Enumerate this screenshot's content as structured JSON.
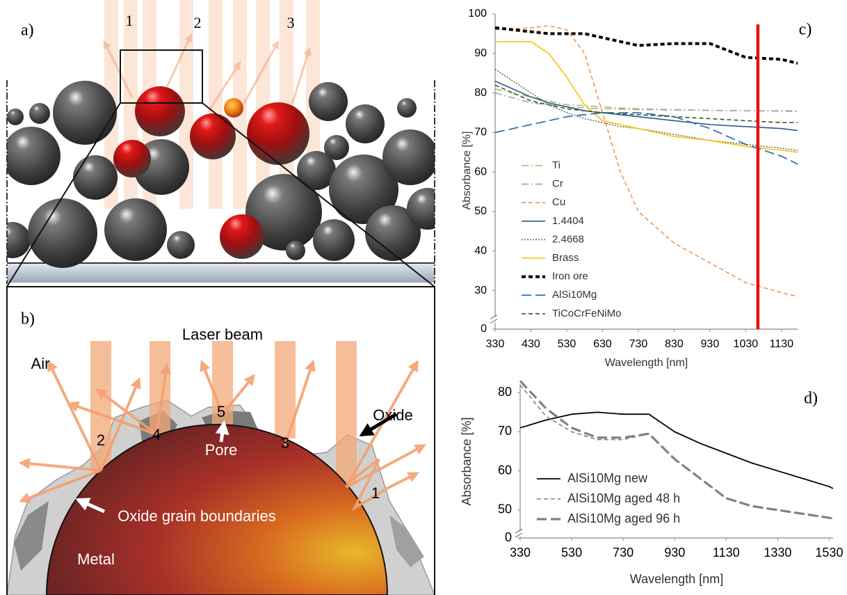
{
  "panels": {
    "a": {
      "label": "a)",
      "beams": [
        "1",
        "2",
        "3"
      ]
    },
    "b": {
      "label": "b)",
      "title": "Laser beam",
      "labels": [
        "Air",
        "2",
        "4",
        "5",
        "3",
        "Oxide",
        "Pore",
        "1",
        "Oxide grain boundaries",
        "Metal"
      ]
    }
  },
  "chart_data": [
    {
      "type": "line",
      "panel_label": "c)",
      "x_label": "Wavelength [nm]",
      "y_label": "Absorbance [%]",
      "x": [
        330,
        430,
        480,
        530,
        580,
        630,
        680,
        730,
        830,
        930,
        1030,
        1130,
        1175
      ],
      "xlim": [
        330,
        1175
      ],
      "xticks": [
        330,
        430,
        530,
        630,
        730,
        830,
        930,
        1030,
        1130
      ],
      "ylim": [
        0,
        100
      ],
      "yticks": [
        0,
        30,
        40,
        50,
        60,
        70,
        80,
        90,
        100
      ],
      "y_break": 25,
      "legend": "lower left",
      "vline": {
        "x": 1064,
        "color": "#e81010"
      },
      "series": [
        {
          "name": "Ti",
          "color": "#9bc45a",
          "linestyle": "dashdot",
          "linewidth": 1.6,
          "values": [
            81,
            79,
            78,
            77,
            76.8,
            76.5,
            76.2,
            76,
            75.8,
            75.6,
            75.5,
            75.4,
            75.3
          ]
        },
        {
          "name": "Cr",
          "color": "#a5a5a5",
          "linestyle": "dashdot",
          "linewidth": 1.6,
          "values": [
            80,
            77.5,
            77,
            76.5,
            76.2,
            76,
            75.9,
            75.8,
            75.7,
            75.6,
            75.5,
            75.5,
            75.5
          ]
        },
        {
          "name": "Cu",
          "color": "#ed7d31",
          "linestyle": "dash",
          "linewidth": 1.3,
          "values": [
            96,
            96.5,
            97,
            96,
            90,
            75,
            60,
            50,
            42,
            37,
            32,
            29.5,
            28.5
          ]
        },
        {
          "name": "1.4404",
          "color": "#2f5597",
          "linestyle": "solid",
          "linewidth": 1.6,
          "values": [
            83,
            79,
            77.5,
            76.5,
            75.5,
            75,
            74.5,
            74,
            73,
            72,
            71.5,
            71,
            70.5
          ]
        },
        {
          "name": "2.4668",
          "color": "#555555",
          "linestyle": "dot",
          "linewidth": 1.4,
          "values": [
            86,
            80,
            77,
            75,
            73.5,
            72.5,
            71.5,
            71,
            69.5,
            68,
            67,
            66,
            65.5
          ]
        },
        {
          "name": "Brass",
          "color": "#ffc000",
          "linestyle": "solid",
          "linewidth": 1.6,
          "values": [
            93,
            93,
            90,
            84,
            77,
            73,
            72,
            71,
            69,
            68,
            66.5,
            65.5,
            65
          ]
        },
        {
          "name": "Iron ore",
          "color": "#000000",
          "linestyle": "dash",
          "linewidth": 4,
          "values": [
            96.5,
            95.5,
            95,
            95,
            95,
            94,
            93,
            92,
            92.5,
            92.5,
            89,
            88.5,
            87.5
          ]
        },
        {
          "name": "AlSi10Mg",
          "color": "#2e75b6",
          "linestyle": "longdash",
          "linewidth": 1.8,
          "values": [
            70,
            72,
            73,
            74,
            74.5,
            75,
            75,
            75,
            74,
            71,
            67,
            64,
            62
          ]
        },
        {
          "name": "TiCoCrFeNiMo",
          "color": "#375623",
          "linestyle": "dash",
          "linewidth": 1.6,
          "values": [
            82,
            78,
            77,
            76,
            75.5,
            75,
            74.7,
            74.5,
            74,
            73.5,
            73,
            72.5,
            72.5
          ]
        }
      ]
    },
    {
      "type": "line",
      "panel_label": "d)",
      "x_label": "Wavelength [nm]",
      "y_label": "Absorbance [%]",
      "x": [
        330,
        430,
        530,
        630,
        730,
        830,
        930,
        1030,
        1130,
        1230,
        1330,
        1430,
        1530,
        1545
      ],
      "xlim": [
        330,
        1545
      ],
      "xticks": [
        330,
        530,
        730,
        930,
        1130,
        1330,
        1530
      ],
      "ylim": [
        0,
        82
      ],
      "yticks": [
        0,
        50,
        60,
        70,
        80
      ],
      "y_break": 45,
      "legend": "lower left",
      "series": [
        {
          "name": "AlSi10Mg new",
          "color": "#000000",
          "linestyle": "solid",
          "linewidth": 1.8,
          "values": [
            71,
            73,
            74.5,
            75,
            74.5,
            74.5,
            70,
            67,
            64.5,
            62,
            60,
            58,
            56,
            55.5
          ]
        },
        {
          "name": "AlSi10Mg aged 48 h",
          "color": "#808080",
          "linestyle": "dash",
          "linewidth": 1.6,
          "values": [
            82,
            74,
            70,
            68,
            68,
            69.5,
            63,
            58,
            53,
            51,
            50,
            49,
            48,
            47.8
          ]
        },
        {
          "name": "AlSi10Mg aged 96 h",
          "color": "#808080",
          "linestyle": "longdash",
          "linewidth": 3.2,
          "values": [
            83,
            76,
            71,
            68.5,
            68.5,
            69.5,
            63,
            58,
            53,
            51,
            50,
            49,
            48,
            47.8
          ]
        }
      ]
    }
  ]
}
